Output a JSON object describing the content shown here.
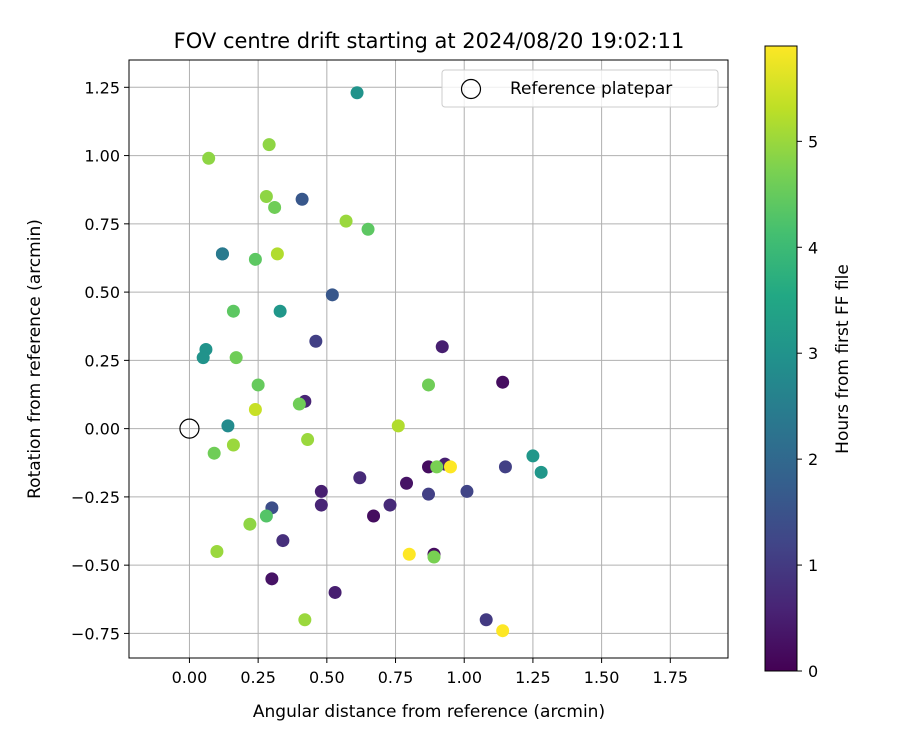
{
  "chart_data": {
    "type": "scatter",
    "title": "FOV centre drift starting at 2024/08/20 19:02:11",
    "xlabel": "Angular distance from reference (arcmin)",
    "ylabel": "Rotation from reference (arcmin)",
    "xlim": [
      -0.22,
      1.96
    ],
    "ylim": [
      -0.84,
      1.35
    ],
    "x_ticks": [
      0.0,
      0.25,
      0.5,
      0.75,
      1.0,
      1.25,
      1.5,
      1.75
    ],
    "x_tick_labels": [
      "0.00",
      "0.25",
      "0.50",
      "0.75",
      "1.00",
      "1.25",
      "1.50",
      "1.75"
    ],
    "y_ticks": [
      -0.75,
      -0.5,
      -0.25,
      0.0,
      0.25,
      0.5,
      0.75,
      1.0,
      1.25
    ],
    "y_tick_labels": [
      "−0.75",
      "−0.50",
      "−0.25",
      "0.00",
      "0.25",
      "0.50",
      "0.75",
      "1.00",
      "1.25"
    ],
    "grid": true,
    "legend": {
      "position": "top-right",
      "entries": [
        "Reference platepar"
      ]
    },
    "reference_point": {
      "x": 0.0,
      "y": 0.0
    },
    "colorbar": {
      "label": "Hours from first FF file",
      "min": 0,
      "max": 5.9,
      "ticks": [
        0,
        1,
        2,
        3,
        4,
        5
      ],
      "tick_labels": [
        "0",
        "1",
        "2",
        "3",
        "4",
        "5"
      ],
      "colormap": "viridis"
    },
    "colors": {
      "viridis": [
        "#440154",
        "#482475",
        "#414487",
        "#355f8d",
        "#2a788e",
        "#21918c",
        "#22a884",
        "#44bf70",
        "#7ad151",
        "#bddf26",
        "#fde725"
      ],
      "grid": "#b0b0b0",
      "axis": "#000000"
    },
    "points": [
      {
        "x": 0.61,
        "y": 1.23,
        "h": 3.0
      },
      {
        "x": 0.07,
        "y": 0.99,
        "h": 4.9
      },
      {
        "x": 0.29,
        "y": 1.04,
        "h": 4.9
      },
      {
        "x": 0.41,
        "y": 0.84,
        "h": 1.6
      },
      {
        "x": 0.28,
        "y": 0.85,
        "h": 4.9
      },
      {
        "x": 0.31,
        "y": 0.81,
        "h": 4.6
      },
      {
        "x": 0.57,
        "y": 0.76,
        "h": 5.0
      },
      {
        "x": 0.65,
        "y": 0.73,
        "h": 4.4
      },
      {
        "x": 0.12,
        "y": 0.64,
        "h": 2.0
      },
      {
        "x": 0.12,
        "y": 0.64,
        "h": 2.4
      },
      {
        "x": 0.32,
        "y": 0.64,
        "h": 5.2
      },
      {
        "x": 0.24,
        "y": 0.62,
        "h": 4.4
      },
      {
        "x": 0.52,
        "y": 0.49,
        "h": 1.6
      },
      {
        "x": 0.16,
        "y": 0.43,
        "h": 4.4
      },
      {
        "x": 0.33,
        "y": 0.43,
        "h": 3.1
      },
      {
        "x": 0.46,
        "y": 0.32,
        "h": 1.1
      },
      {
        "x": 0.92,
        "y": 0.3,
        "h": 0.5
      },
      {
        "x": 0.06,
        "y": 0.29,
        "h": 3.0
      },
      {
        "x": 0.05,
        "y": 0.26,
        "h": 3.0
      },
      {
        "x": 0.17,
        "y": 0.26,
        "h": 4.6
      },
      {
        "x": 0.25,
        "y": 0.16,
        "h": 4.5
      },
      {
        "x": 0.87,
        "y": 0.16,
        "h": 4.6
      },
      {
        "x": 1.14,
        "y": 0.17,
        "h": 0.2
      },
      {
        "x": 0.42,
        "y": 0.1,
        "h": 0.6
      },
      {
        "x": 0.4,
        "y": 0.09,
        "h": 4.6
      },
      {
        "x": 0.24,
        "y": 0.07,
        "h": 5.4
      },
      {
        "x": 0.14,
        "y": 0.01,
        "h": 2.8
      },
      {
        "x": 0.76,
        "y": 0.01,
        "h": 5.2
      },
      {
        "x": 0.16,
        "y": -0.06,
        "h": 5.0
      },
      {
        "x": 0.43,
        "y": -0.04,
        "h": 5.0
      },
      {
        "x": 0.09,
        "y": -0.09,
        "h": 4.6
      },
      {
        "x": 1.25,
        "y": -0.1,
        "h": 3.1
      },
      {
        "x": 1.28,
        "y": -0.16,
        "h": 3.1
      },
      {
        "x": 0.93,
        "y": -0.13,
        "h": 0.5
      },
      {
        "x": 0.87,
        "y": -0.14,
        "h": 0.2
      },
      {
        "x": 0.9,
        "y": -0.14,
        "h": 4.7
      },
      {
        "x": 0.95,
        "y": -0.14,
        "h": 5.9
      },
      {
        "x": 1.15,
        "y": -0.14,
        "h": 1.1
      },
      {
        "x": 0.62,
        "y": -0.18,
        "h": 0.7
      },
      {
        "x": 0.79,
        "y": -0.2,
        "h": 0.3
      },
      {
        "x": 0.48,
        "y": -0.23,
        "h": 0.5
      },
      {
        "x": 0.87,
        "y": -0.24,
        "h": 1.1
      },
      {
        "x": 1.01,
        "y": -0.23,
        "h": 1.2
      },
      {
        "x": 0.48,
        "y": -0.28,
        "h": 0.6
      },
      {
        "x": 0.73,
        "y": -0.28,
        "h": 0.7
      },
      {
        "x": 0.3,
        "y": -0.29,
        "h": 1.4
      },
      {
        "x": 0.67,
        "y": -0.32,
        "h": 0.2
      },
      {
        "x": 0.28,
        "y": -0.32,
        "h": 4.3
      },
      {
        "x": 0.22,
        "y": -0.35,
        "h": 4.9
      },
      {
        "x": 0.34,
        "y": -0.41,
        "h": 0.8
      },
      {
        "x": 0.1,
        "y": -0.45,
        "h": 5.0
      },
      {
        "x": 0.8,
        "y": -0.46,
        "h": 5.9
      },
      {
        "x": 0.89,
        "y": -0.46,
        "h": 0.2
      },
      {
        "x": 0.89,
        "y": -0.47,
        "h": 4.7
      },
      {
        "x": 0.3,
        "y": -0.55,
        "h": 0.3
      },
      {
        "x": 0.53,
        "y": -0.6,
        "h": 0.5
      },
      {
        "x": 0.42,
        "y": -0.7,
        "h": 5.0
      },
      {
        "x": 1.08,
        "y": -0.7,
        "h": 1.0
      },
      {
        "x": 1.14,
        "y": -0.74,
        "h": 5.9
      }
    ]
  }
}
